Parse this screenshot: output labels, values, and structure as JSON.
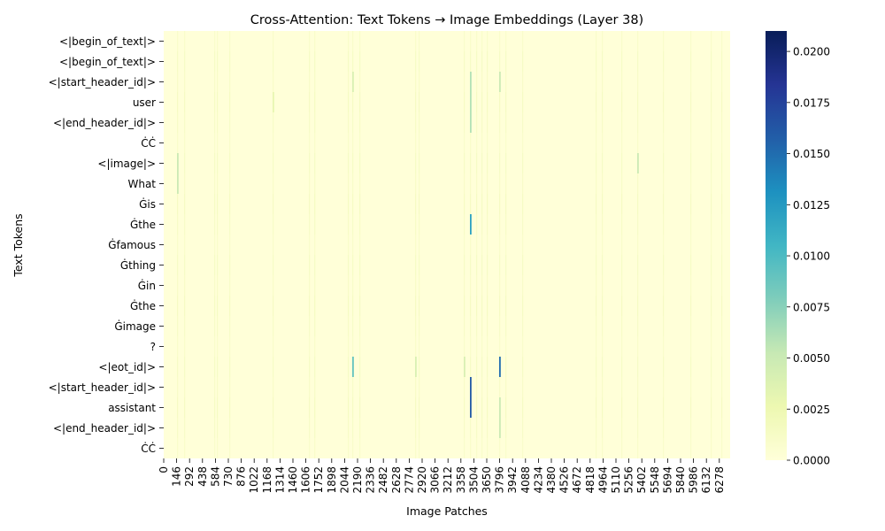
{
  "chart_data": {
    "type": "heatmap",
    "title": "Cross-Attention: Text Tokens → Image Embeddings (Layer 38)",
    "xlabel": "Image Patches",
    "ylabel": "Text Tokens",
    "x_range": [
      0,
      6400
    ],
    "x_tick_labels": [
      "0",
      "146",
      "292",
      "438",
      "584",
      "730",
      "876",
      "1022",
      "1168",
      "1314",
      "1460",
      "1606",
      "1752",
      "1898",
      "2044",
      "2190",
      "2336",
      "2482",
      "2628",
      "2774",
      "2920",
      "3066",
      "3212",
      "3358",
      "3504",
      "3650",
      "3796",
      "3942",
      "4088",
      "4234",
      "4380",
      "4526",
      "4672",
      "4818",
      "4964",
      "5110",
      "5256",
      "5402",
      "5548",
      "5694",
      "5840",
      "5986",
      "6132",
      "6278"
    ],
    "y_tick_labels": [
      "<|begin_of_text|>",
      "<|begin_of_text|>",
      "<|start_header_id|>",
      "user",
      "<|end_header_id|>",
      "ĊĊ",
      "<|image|>",
      "What",
      "Ġis",
      "Ġthe",
      "Ġfamous",
      "Ġthing",
      "Ġin",
      "Ġthe",
      "Ġimage",
      "?",
      "<|eot_id|>",
      "<|start_header_id|>",
      "assistant",
      "<|end_header_id|>",
      "ĊĊ"
    ],
    "colorbar": {
      "colormap": "YlGnBu",
      "min": 0.0,
      "max": 0.021,
      "tick_labels": [
        "0.0000",
        "0.0025",
        "0.0050",
        "0.0075",
        "0.0100",
        "0.0125",
        "0.0150",
        "0.0175",
        "0.0200"
      ]
    },
    "highlights": [
      {
        "patch": 3460,
        "rows": [
          17,
          18
        ],
        "value": 0.016
      },
      {
        "patch": 3460,
        "rows": [
          9
        ],
        "value": 0.012
      },
      {
        "patch": 3460,
        "rows": [
          2,
          3,
          4
        ],
        "value": 0.006
      },
      {
        "patch": 3790,
        "rows": [
          16
        ],
        "value": 0.015
      },
      {
        "patch": 3790,
        "rows": [
          2
        ],
        "value": 0.005
      },
      {
        "patch": 3790,
        "rows": [
          18,
          19
        ],
        "value": 0.005
      },
      {
        "patch": 2130,
        "rows": [
          16
        ],
        "value": 0.009
      },
      {
        "patch": 2130,
        "rows": [
          2
        ],
        "value": 0.004
      },
      {
        "patch": 3390,
        "rows": [
          16
        ],
        "value": 0.004
      },
      {
        "patch": 2840,
        "rows": [
          16
        ],
        "value": 0.004
      },
      {
        "patch": 150,
        "rows": [
          6,
          7
        ],
        "value": 0.005
      },
      {
        "patch": 5350,
        "rows": [
          6
        ],
        "value": 0.005
      },
      {
        "patch": 1230,
        "rows": [
          3
        ],
        "value": 0.003
      }
    ],
    "faint_columns": [
      150,
      230,
      570,
      600,
      740,
      1230,
      1640,
      1700,
      1700,
      2080,
      2130,
      2210,
      2840,
      2880,
      3390,
      3460,
      3530,
      3590,
      3650,
      3790,
      3860,
      4050,
      4880,
      4950,
      5170,
      5350,
      5640,
      5950,
      6180,
      6300
    ]
  }
}
